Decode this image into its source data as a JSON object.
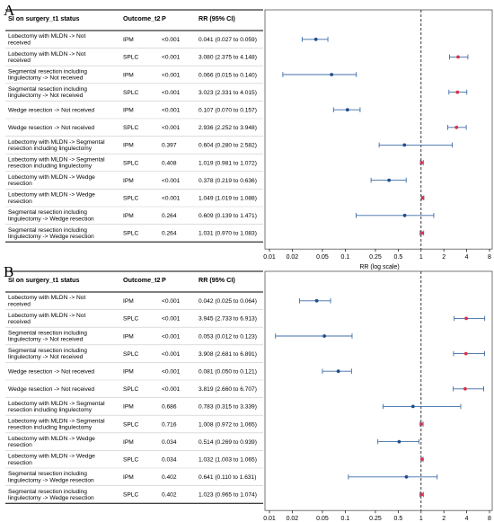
{
  "panel_labels": [
    "A",
    "B"
  ],
  "headers": {
    "comparison": "SI on surgery_t1 status",
    "outcome": "Outcome_t2",
    "p": "P",
    "rr": "RR (95% CI)"
  },
  "chart_data": [
    {
      "type": "forest",
      "panel": "A",
      "x_scale": "log",
      "xlim": [
        0.01,
        8
      ],
      "reference_line": 1,
      "xlabel": "RR (log scale)",
      "xticks": [
        "0.01",
        "0.02",
        "0.05",
        "0.1",
        "0.25",
        "0.5",
        "1",
        "2",
        "4",
        "8"
      ],
      "rows": [
        {
          "comparison": [
            "Lobectomy with MLDN -> Not",
            "received"
          ],
          "outcome": "IPM",
          "p": "<0.001",
          "rr_text": "0.041 (0.027 to 0.059)",
          "rr": 0.041,
          "lo": 0.027,
          "hi": 0.059
        },
        {
          "comparison": [
            "Lobectomy with MLDN -> Not",
            "received"
          ],
          "outcome": "SPLC",
          "p": "<0.001",
          "rr_text": "3.080 (2.375 to 4.148)",
          "rr": 3.08,
          "lo": 2.375,
          "hi": 4.148
        },
        {
          "comparison": [
            "Segmental resection including",
            "lingulectomy -> Not received"
          ],
          "outcome": "IPM",
          "p": "<0.001",
          "rr_text": "0.066 (0.015 to 0.140)",
          "rr": 0.066,
          "lo": 0.015,
          "hi": 0.14
        },
        {
          "comparison": [
            "Segmental resection including",
            "lingulectomy -> Not received"
          ],
          "outcome": "SPLC",
          "p": "<0.001",
          "rr_text": "3.023 (2.331 to 4.015)",
          "rr": 3.023,
          "lo": 2.331,
          "hi": 4.015
        },
        {
          "comparison": [
            "Wedge resection -> Not received"
          ],
          "outcome": "IPM",
          "p": "<0.001",
          "rr_text": "0.107 (0.070 to 0.157)",
          "rr": 0.107,
          "lo": 0.07,
          "hi": 0.157
        },
        {
          "comparison": [
            "Wedge resection -> Not received"
          ],
          "outcome": "SPLC",
          "p": "<0.001",
          "rr_text": "2.936 (2.252 to 3.948)",
          "rr": 2.936,
          "lo": 2.252,
          "hi": 3.948
        },
        {
          "comparison": [
            "Lobectomy with MLDN -> Segmental",
            "resection including lingulectomy"
          ],
          "outcome": "IPM",
          "p": "0.397",
          "rr_text": "0.604 (0.280 to 2.582)",
          "rr": 0.604,
          "lo": 0.28,
          "hi": 2.582
        },
        {
          "comparison": [
            "Lobectomy with MLDN -> Segmental",
            "resection including lingulectomy"
          ],
          "outcome": "SPLC",
          "p": "0.408",
          "rr_text": "1.019 (0.981 to 1.072)",
          "rr": 1.019,
          "lo": 0.981,
          "hi": 1.072
        },
        {
          "comparison": [
            "Lobectomy with MLDN -> Wedge",
            "resection"
          ],
          "outcome": "IPM",
          "p": "<0.001",
          "rr_text": "0.378 (0.219 to 0.636)",
          "rr": 0.378,
          "lo": 0.219,
          "hi": 0.636
        },
        {
          "comparison": [
            "Lobectomy with MLDN -> Wedge",
            "resection"
          ],
          "outcome": "SPLC",
          "p": "<0.001",
          "rr_text": "1.049 (1.019 to 1.088)",
          "rr": 1.049,
          "lo": 1.019,
          "hi": 1.088
        },
        {
          "comparison": [
            "Segmental resection including",
            "lingulectomy -> Wedge resection"
          ],
          "outcome": "IPM",
          "p": "0.264",
          "rr_text": "0.609 (0.139 to 1.471)",
          "rr": 0.609,
          "lo": 0.139,
          "hi": 1.471
        },
        {
          "comparison": [
            "Segmental resection including",
            "lingulectomy -> Wedge resection"
          ],
          "outcome": "SPLC",
          "p": "0.264",
          "rr_text": "1.031 (0.970 to 1.083)",
          "rr": 1.031,
          "lo": 0.97,
          "hi": 1.083
        }
      ]
    },
    {
      "type": "forest",
      "panel": "B",
      "x_scale": "log",
      "xlim": [
        0.01,
        8
      ],
      "reference_line": 1,
      "xlabel": "RR (log scale)",
      "xticks": [
        "0.01",
        "0.02",
        "0.05",
        "0.1",
        "0.25",
        "0.5",
        "1",
        "2",
        "4",
        "8"
      ],
      "rows": [
        {
          "comparison": [
            "Lobectomy with MLDN -> Not",
            "received"
          ],
          "outcome": "IPM",
          "p": "<0.001",
          "rr_text": "0.042 (0.025 to 0.064)",
          "rr": 0.042,
          "lo": 0.025,
          "hi": 0.064
        },
        {
          "comparison": [
            "Lobectomy with MLDN -> Not",
            "received"
          ],
          "outcome": "SPLC",
          "p": "<0.001",
          "rr_text": "3.945 (2.733 to 6.913)",
          "rr": 3.945,
          "lo": 2.733,
          "hi": 6.913
        },
        {
          "comparison": [
            "Segmental resection including",
            "lingulectomy -> Not received"
          ],
          "outcome": "IPM",
          "p": "<0.001",
          "rr_text": "0.053 (0.012 to 0.123)",
          "rr": 0.053,
          "lo": 0.012,
          "hi": 0.123
        },
        {
          "comparison": [
            "Segmental resection including",
            "lingulectomy -> Not received"
          ],
          "outcome": "SPLC",
          "p": "<0.001",
          "rr_text": "3.908 (2.681 to 6.891)",
          "rr": 3.908,
          "lo": 2.681,
          "hi": 6.891
        },
        {
          "comparison": [
            "Wedge resection -> Not received"
          ],
          "outcome": "IPM",
          "p": "<0.001",
          "rr_text": "0.081 (0.050 to 0.121)",
          "rr": 0.081,
          "lo": 0.05,
          "hi": 0.121
        },
        {
          "comparison": [
            "Wedge resection -> Not received"
          ],
          "outcome": "SPLC",
          "p": "<0.001",
          "rr_text": "3.819 (2.660 to 6.707)",
          "rr": 3.819,
          "lo": 2.66,
          "hi": 6.707
        },
        {
          "comparison": [
            "Lobectomy with MLDN -> Segmental",
            "resection including lingulectomy"
          ],
          "outcome": "IPM",
          "p": "0.686",
          "rr_text": "0.783 (0.315 to 3.339)",
          "rr": 0.783,
          "lo": 0.315,
          "hi": 3.339
        },
        {
          "comparison": [
            "Lobectomy with MLDN -> Segmental",
            "resection including lingulectomy"
          ],
          "outcome": "SPLC",
          "p": "0.716",
          "rr_text": "1.008 (0.972 to 1.065)",
          "rr": 1.008,
          "lo": 0.972,
          "hi": 1.065
        },
        {
          "comparison": [
            "Lobectomy with MLDN -> Wedge",
            "resection"
          ],
          "outcome": "IPM",
          "p": "0.034",
          "rr_text": "0.514 (0.269 to 0.939)",
          "rr": 0.514,
          "lo": 0.269,
          "hi": 0.939
        },
        {
          "comparison": [
            "Lobectomy with MLDN -> Wedge",
            "resection"
          ],
          "outcome": "SPLC",
          "p": "0.034",
          "rr_text": "1.032 (1.003 to 1.065)",
          "rr": 1.032,
          "lo": 1.003,
          "hi": 1.065
        },
        {
          "comparison": [
            "Segmental resection including",
            "lingulectomy -> Wedge resection"
          ],
          "outcome": "IPM",
          "p": "0.402",
          "rr_text": "0.641 (0.110 to 1.631)",
          "rr": 0.641,
          "lo": 0.11,
          "hi": 1.631
        },
        {
          "comparison": [
            "Segmental resection including",
            "lingulectomy -> Wedge resection"
          ],
          "outcome": "SPLC",
          "p": "0.402",
          "rr_text": "1.023 (0.965 to 1.074)",
          "rr": 1.023,
          "lo": 0.965,
          "hi": 1.074
        }
      ]
    }
  ],
  "colors": {
    "ipm_line": "#3f6ea8",
    "ipm_point": "#1f4e8c",
    "splc_line": "#3f6ea8",
    "splc_point": "#d6334a",
    "row_border": "#c9c9c9",
    "frame": "#555555"
  }
}
